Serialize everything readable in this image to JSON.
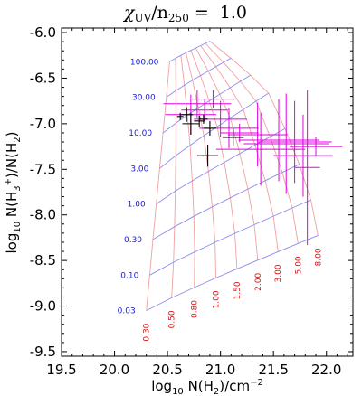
{
  "chart_data": {
    "type": "scatter",
    "title": {
      "symbol": "χ",
      "sub1": "UV",
      "slash": "/n",
      "sub2": "250",
      "eq": " =",
      "value": "1.0"
    },
    "xlabel": {
      "prefix": "log",
      "sub": "10",
      "text": " N(H",
      "sub2": "2",
      "text2": ")/cm",
      "sup": "−2"
    },
    "ylabel": {
      "prefix": "log",
      "sub": "10",
      "text": " N(H",
      "sub2": "3",
      "sup": "+",
      "text2": ")/N(H",
      "sub3": "2",
      "text3": ")"
    },
    "xlim": [
      19.5,
      22.25
    ],
    "ylim": [
      -9.55,
      -5.95
    ],
    "xticks": [
      "19.5",
      "20.0",
      "20.5",
      "21.0",
      "21.5",
      "22.0"
    ],
    "yticks": [
      "-6.0",
      "-6.5",
      "-7.0",
      "-7.5",
      "-8.0",
      "-8.5",
      "-9.0",
      "-9.5"
    ],
    "grid": {
      "blue_values": [
        0.03,
        0.1,
        0.3,
        1.0,
        3.0,
        10.0,
        30.0,
        100.0
      ],
      "blue_labels": [
        "0.03",
        "0.10",
        "0.30",
        "1.00",
        "3.00",
        "10.00",
        "30.00",
        "100.00"
      ],
      "red_values": [
        0.3,
        0.5,
        0.8,
        1.0,
        1.5,
        2.0,
        3.0,
        5.0,
        8.0
      ],
      "red_labels": [
        "0.30",
        "0.50",
        "0.80",
        "1.00",
        "1.50",
        "2.00",
        "3.00",
        "5.00",
        "8.00"
      ],
      "colors": {
        "blue": "#8c8cf0",
        "red": "#f0a0a0",
        "blue_text": "#1a1ad6",
        "red_text": "#d41414"
      }
    },
    "series": [
      {
        "color": "#e000e0",
        "points": [
          {
            "x": 20.78,
            "y": -6.78,
            "xerr": [
              0.32,
              0.32
            ],
            "yerr": [
              0.15,
              0.15
            ]
          },
          {
            "x": 20.85,
            "y": -6.85,
            "xerr": [
              0.22,
              0.22
            ],
            "yerr": [
              0.12,
              0.12
            ]
          },
          {
            "x": 20.72,
            "y": -6.9,
            "xerr": [
              0.24,
              0.24
            ],
            "yerr": [
              0.22,
              0.22
            ]
          },
          {
            "x": 20.93,
            "y": -6.73,
            "xerr": [
              0.2,
              0.2
            ],
            "yerr": [
              0.1,
              0.1
            ]
          },
          {
            "x": 21.0,
            "y": -6.95,
            "xerr": [
              0.25,
              0.25
            ],
            "yerr": [
              0.2,
              0.2
            ]
          },
          {
            "x": 21.08,
            "y": -7.05,
            "xerr": [
              0.28,
              0.28
            ],
            "yerr": [
              0.22,
              0.22
            ]
          },
          {
            "x": 21.18,
            "y": -7.1,
            "xerr": [
              0.18,
              0.18
            ],
            "yerr": [
              0.1,
              0.1
            ]
          },
          {
            "x": 21.35,
            "y": -7.12,
            "xerr": [
              0.28,
              0.28
            ],
            "yerr": [
              0.35,
              0.35
            ]
          },
          {
            "x": 21.38,
            "y": -7.28,
            "xerr": [
              0.42,
              0.42
            ],
            "yerr": [
              0.4,
              0.4
            ]
          },
          {
            "x": 21.55,
            "y": -7.18,
            "xerr": [
              0.38,
              0.38
            ],
            "yerr": [
              0.45,
              0.45
            ]
          },
          {
            "x": 21.62,
            "y": -7.22,
            "xerr": [
              0.4,
              0.4
            ],
            "yerr": [
              0.55,
              0.55
            ]
          },
          {
            "x": 21.7,
            "y": -7.2,
            "xerr": [
              0.35,
              0.35
            ],
            "yerr": [
              0.45,
              0.45
            ]
          },
          {
            "x": 21.78,
            "y": -7.35,
            "xerr": [
              0.28,
              0.28
            ],
            "yerr": [
              0.45,
              0.45
            ]
          },
          {
            "x": 21.82,
            "y": -7.48,
            "xerr": [
              0.12,
              0.12
            ],
            "yerr": [
              0.85,
              0.85
            ]
          },
          {
            "x": 21.9,
            "y": -7.25,
            "xerr": [
              0.25,
              0.25
            ],
            "yerr": [
              0.1,
              0.1
            ]
          }
        ]
      },
      {
        "color": "#000000",
        "points": [
          {
            "x": 20.62,
            "y": -6.92,
            "xerr": [
              0.03,
              0.03
            ],
            "yerr": [
              0.04,
              0.04
            ]
          },
          {
            "x": 20.68,
            "y": -6.9,
            "xerr": [
              0.06,
              0.06
            ],
            "yerr": [
              0.08,
              0.08
            ]
          },
          {
            "x": 20.72,
            "y": -7.0,
            "xerr": [
              0.08,
              0.08
            ],
            "yerr": [
              0.12,
              0.12
            ]
          },
          {
            "x": 20.8,
            "y": -6.97,
            "xerr": [
              0.05,
              0.05
            ],
            "yerr": [
              0.06,
              0.06
            ]
          },
          {
            "x": 20.84,
            "y": -6.95,
            "xerr": [
              0.04,
              0.04
            ],
            "yerr": [
              0.05,
              0.05
            ]
          },
          {
            "x": 20.9,
            "y": -7.05,
            "xerr": [
              0.06,
              0.06
            ],
            "yerr": [
              0.08,
              0.08
            ]
          },
          {
            "x": 20.88,
            "y": -7.35,
            "xerr": [
              0.1,
              0.1
            ],
            "yerr": [
              0.12,
              0.12
            ]
          },
          {
            "x": 21.12,
            "y": -7.15,
            "xerr": [
              0.1,
              0.1
            ],
            "yerr": [
              0.1,
              0.1
            ]
          }
        ]
      }
    ]
  }
}
